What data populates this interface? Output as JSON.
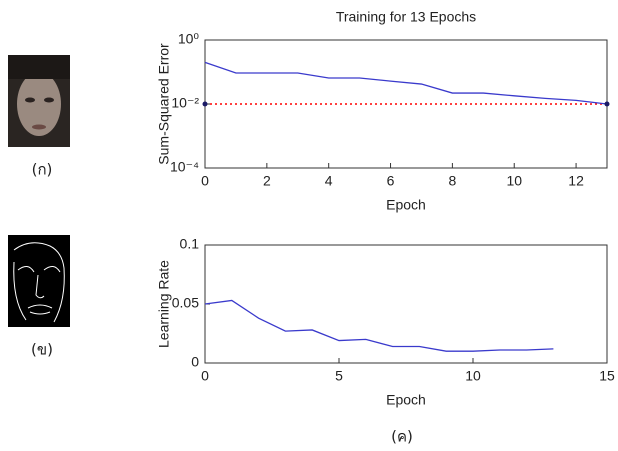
{
  "figure": {
    "captions": [
      "(ก)",
      "(ข)",
      "(ค)"
    ]
  },
  "chart_data": [
    {
      "type": "line",
      "title": "Training for 13 Epochs",
      "x_label": "Epoch",
      "y_label": "Sum-Squared Error",
      "yscale": "log",
      "xlim": [
        0,
        13
      ],
      "ylim": [
        0.0001,
        1
      ],
      "xticks": [
        0,
        2,
        4,
        6,
        8,
        10,
        12
      ],
      "yticks": [
        {
          "value": 0.0001,
          "label": "10⁻⁴"
        },
        {
          "value": 0.01,
          "label": "10⁻²"
        },
        {
          "value": 1,
          "label": "10⁰"
        }
      ],
      "goal": 0.01,
      "goal_color": "#ff0000",
      "x": [
        0,
        1,
        2,
        3,
        4,
        5,
        6,
        7,
        8,
        9,
        10,
        11,
        12,
        13
      ],
      "series": [
        {
          "color": "#3a3acc",
          "values": [
            0.2,
            0.093,
            0.093,
            0.093,
            0.065,
            0.065,
            0.052,
            0.042,
            0.022,
            0.022,
            0.018,
            0.015,
            0.013,
            0.01
          ]
        }
      ]
    },
    {
      "type": "line",
      "x_label": "Epoch",
      "y_label": "Learning Rate",
      "xlim": [
        0,
        15
      ],
      "ylim": [
        0,
        0.1
      ],
      "xticks": [
        0,
        5,
        10,
        15
      ],
      "yticks": [
        0,
        0.05,
        0.1
      ],
      "x": [
        0,
        1,
        2,
        3,
        4,
        5,
        6,
        7,
        8,
        9,
        10,
        11,
        12,
        13
      ],
      "series": [
        {
          "color": "#3a3acc",
          "values": [
            0.05,
            0.053,
            0.038,
            0.027,
            0.028,
            0.019,
            0.02,
            0.014,
            0.014,
            0.01,
            0.01,
            0.011,
            0.011,
            0.012
          ]
        }
      ]
    }
  ]
}
